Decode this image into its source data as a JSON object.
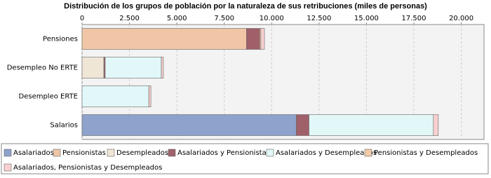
{
  "chart_data": {
    "type": "stacked-bar-horizontal",
    "title": "Distribución de los grupos de población por la naturaleza de sus retribuciones (miles de personas)",
    "categories": [
      "Pensiones",
      "Desempleo No ERTE",
      "Desempleo ERTE",
      "Salarios"
    ],
    "series": [
      {
        "name": "Asalariados",
        "color": "#8ea2cb",
        "values": [
          0,
          0,
          0,
          11300
        ]
      },
      {
        "name": "Pensionistas",
        "color": "#f0c6a6",
        "values": [
          8670,
          0,
          0,
          0
        ]
      },
      {
        "name": "Desempleados",
        "color": "#f0e6d6",
        "values": [
          0,
          1150,
          0,
          0
        ]
      },
      {
        "name": "Asalariados y Pensionistas",
        "color": "#a0606a",
        "values": [
          700,
          70,
          0,
          670
        ]
      },
      {
        "name": "Asalariados y Desempleados",
        "color": "#e2f8f8",
        "values": [
          0,
          2960,
          3520,
          6560
        ]
      },
      {
        "name": "Pensionistas y Desempleados",
        "color": "#f3cba8",
        "values": [
          60,
          0,
          0,
          0
        ]
      },
      {
        "name": "Asalariados, Pensionistas y Desempleados",
        "color": "#f8d0d0",
        "values": [
          190,
          110,
          110,
          260
        ]
      }
    ],
    "xlim": [
      0,
      21200
    ],
    "xticks": [
      0,
      {
        "value": 2500,
        "label": "2.500"
      },
      {
        "value": 5000,
        "label": "5.000"
      },
      {
        "value": 7500,
        "label": "7.500"
      },
      {
        "value": 10000,
        "label": "10.000"
      },
      {
        "value": 12500,
        "label": "12.500"
      },
      {
        "value": 15000,
        "label": "15.000"
      },
      {
        "value": 17500,
        "label": "17.500"
      },
      {
        "value": 20000,
        "label": "20.000"
      }
    ],
    "grid": true
  }
}
